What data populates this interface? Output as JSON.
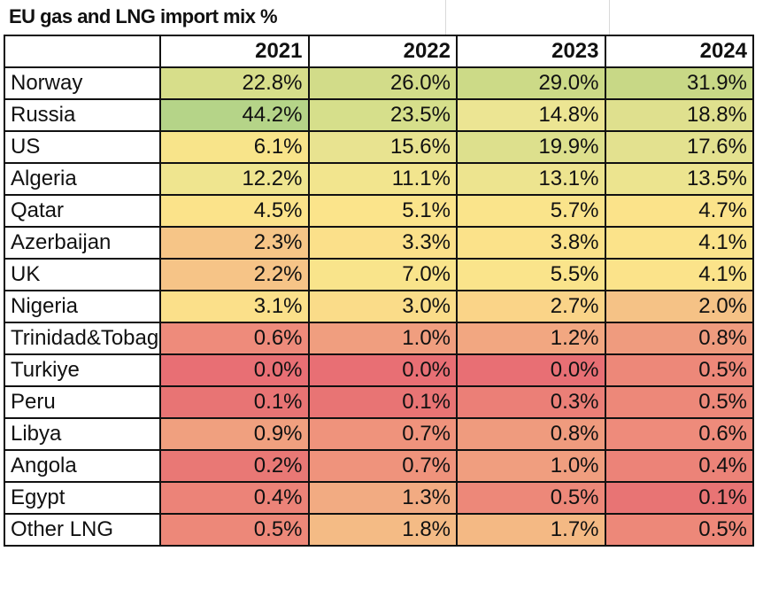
{
  "chart_data": {
    "type": "table",
    "title": "EU gas and LNG import mix %",
    "columns": [
      "2021",
      "2022",
      "2023",
      "2024"
    ],
    "rows": [
      {
        "country": "Norway",
        "values": [
          "22.8%",
          "26.0%",
          "29.0%",
          "31.9%"
        ],
        "colors": [
          "#d7de8a",
          "#d2dc89",
          "#ccda87",
          "#c8d886"
        ]
      },
      {
        "country": "Russia",
        "values": [
          "44.2%",
          "23.5%",
          "14.8%",
          "18.8%"
        ],
        "colors": [
          "#b5d488",
          "#d6df8b",
          "#ece593",
          "#dfe08e"
        ]
      },
      {
        "country": "US",
        "values": [
          "6.1%",
          "15.6%",
          "19.9%",
          "17.6%"
        ],
        "colors": [
          "#f8e48a",
          "#e8e390",
          "#dde08d",
          "#e3e18f"
        ]
      },
      {
        "country": "Algeria",
        "values": [
          "12.2%",
          "11.1%",
          "13.1%",
          "13.5%"
        ],
        "colors": [
          "#efe58f",
          "#f2e58e",
          "#ede48f",
          "#ece48f"
        ]
      },
      {
        "country": "Qatar",
        "values": [
          "4.5%",
          "5.1%",
          "5.7%",
          "4.7%"
        ],
        "colors": [
          "#fbe38a",
          "#fbe48b",
          "#fae48b",
          "#fbe38a"
        ]
      },
      {
        "country": "Azerbaijan",
        "values": [
          "2.3%",
          "3.3%",
          "3.8%",
          "4.1%"
        ],
        "colors": [
          "#f6c587",
          "#fbe08a",
          "#fbe28a",
          "#fbe38a"
        ]
      },
      {
        "country": "UK",
        "values": [
          "2.2%",
          "7.0%",
          "5.5%",
          "4.1%"
        ],
        "colors": [
          "#f6c487",
          "#f9e48b",
          "#fae48b",
          "#fbe38a"
        ]
      },
      {
        "country": "Nigeria",
        "values": [
          "3.1%",
          "3.0%",
          "2.7%",
          "2.0%"
        ],
        "colors": [
          "#fbe08a",
          "#fadc89",
          "#fad488",
          "#f5c286"
        ]
      },
      {
        "country": "Trinidad&Tobago",
        "values": [
          "0.6%",
          "1.0%",
          "1.2%",
          "0.8%"
        ],
        "colors": [
          "#ee8b7b",
          "#f09e7f",
          "#f2a781",
          "#ef9b7e"
        ]
      },
      {
        "country": "Turkiye",
        "values": [
          "0.0%",
          "0.0%",
          "0.0%",
          "0.5%"
        ],
        "colors": [
          "#e86f74",
          "#e86f74",
          "#e86f74",
          "#ed8879"
        ]
      },
      {
        "country": "Peru",
        "values": [
          "0.1%",
          "0.1%",
          "0.3%",
          "0.5%"
        ],
        "colors": [
          "#e87474",
          "#e87474",
          "#eb7f77",
          "#ed8879"
        ]
      },
      {
        "country": "Libya",
        "values": [
          "0.9%",
          "0.7%",
          "0.8%",
          "0.6%"
        ],
        "colors": [
          "#f0a07f",
          "#ef937c",
          "#ef9b7e",
          "#ee8b7b"
        ]
      },
      {
        "country": "Angola",
        "values": [
          "0.2%",
          "0.7%",
          "1.0%",
          "0.4%"
        ],
        "colors": [
          "#e97875",
          "#ef937c",
          "#f09e7f",
          "#ec8378"
        ]
      },
      {
        "country": "Egypt",
        "values": [
          "0.4%",
          "1.3%",
          "0.5%",
          "0.1%"
        ],
        "colors": [
          "#ec8378",
          "#f2ab82",
          "#ed8879",
          "#e87474"
        ]
      },
      {
        "country": "Other LNG",
        "values": [
          "0.5%",
          "1.8%",
          "1.7%",
          "0.5%"
        ],
        "colors": [
          "#ed8879",
          "#f4bb85",
          "#f4b984",
          "#ed8879"
        ]
      }
    ]
  }
}
